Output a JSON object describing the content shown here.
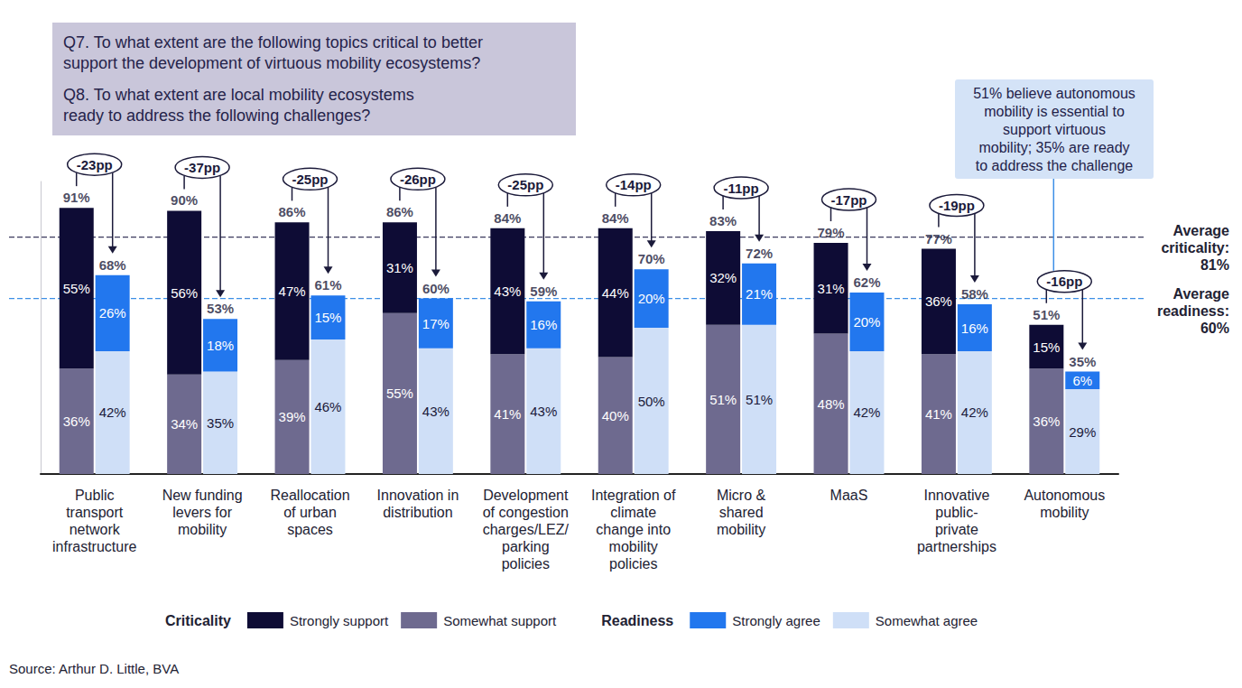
{
  "chart_data": {
    "type": "bar",
    "stacked": true,
    "data_labels": true,
    "tick_labels": "x",
    "grid": false,
    "ylim": [
      0,
      100
    ],
    "questions": [
      "Q7. To what extent are the following topics critical to better\nsupport the development of virtuous mobility ecosystems?",
      "Q8. To what extent are local mobility ecosystems\nready to address the following challenges?"
    ],
    "categories": [
      "Public\ntransport\nnetwork\ninfrastructure",
      "New funding\nlevers for\nmobility",
      "Reallocation\nof urban\nspaces",
      "Innovation in\ndistribution",
      "Development\nof congestion\ncharges/LEZ/\nparking\npolicies",
      "Integration of\nclimate\nchange into\nmobility\npolicies",
      "Micro &\nshared\nmobility",
      "MaaS",
      "Innovative\npublic-\nprivate\npartnerships",
      "Autonomous\nmobility"
    ],
    "groups": [
      {
        "name": "Criticality",
        "series": [
          {
            "name": "Strongly support",
            "color": "#0e0c35",
            "values": [
              55,
              56,
              47,
              31,
              43,
              44,
              32,
              31,
              36,
              15
            ],
            "value_labels": [
              "55%",
              "56%",
              "47%",
              "31%",
              "43%",
              "44%",
              "32%",
              "31%",
              "36%",
              "15%"
            ]
          },
          {
            "name": "Somewhat support",
            "color": "#6e6a8f",
            "values": [
              36,
              34,
              39,
              55,
              41,
              40,
              51,
              48,
              41,
              36
            ],
            "value_labels": [
              "36%",
              "34%",
              "39%",
              "55%",
              "41%",
              "40%",
              "51%",
              "48%",
              "41%",
              "36%"
            ]
          }
        ],
        "totals": [
          91,
          90,
          86,
          86,
          84,
          84,
          83,
          79,
          77,
          51
        ],
        "total_labels": [
          "91%",
          "90%",
          "86%",
          "86%",
          "84%",
          "84%",
          "83%",
          "79%",
          "77%",
          "51%"
        ],
        "average": {
          "text": "Average criticality:",
          "value": 81,
          "label": "81%"
        }
      },
      {
        "name": "Readiness",
        "series": [
          {
            "name": "Strongly agree",
            "color": "#2277ee",
            "values": [
              26,
              18,
              15,
              17,
              16,
              20,
              21,
              20,
              16,
              6
            ],
            "value_labels": [
              "26%",
              "18%",
              "15%",
              "17%",
              "16%",
              "20%",
              "21%",
              "20%",
              "16%",
              "6%"
            ]
          },
          {
            "name": "Somewhat agree",
            "color": "#cfdff7",
            "values": [
              42,
              35,
              46,
              43,
              43,
              50,
              51,
              42,
              42,
              29
            ],
            "value_labels": [
              "42%",
              "35%",
              "46%",
              "43%",
              "43%",
              "50%",
              "51%",
              "42%",
              "42%",
              "29%"
            ]
          }
        ],
        "totals": [
          68,
          53,
          61,
          60,
          59,
          70,
          72,
          62,
          58,
          35
        ],
        "total_labels": [
          "68%",
          "53%",
          "61%",
          "60%",
          "59%",
          "70%",
          "72%",
          "62%",
          "58%",
          "35%"
        ],
        "average": {
          "text": "Average readiness:",
          "value": 60,
          "label": "60%"
        }
      }
    ],
    "gaps": [
      -23,
      -37,
      -25,
      -26,
      -25,
      -14,
      -11,
      -17,
      -19,
      -16
    ],
    "gap_labels": [
      "-23pp",
      "-37pp",
      "-25pp",
      "-26pp",
      "-25pp",
      "-14pp",
      "-11pp",
      "-17pp",
      "-19pp",
      "-16pp"
    ],
    "callout": "51% believe autonomous\nmobility is essential to\nsupport virtuous\nmobility; 35% are ready\nto address the challenge",
    "source": "Source: Arthur D. Little, BVA"
  }
}
